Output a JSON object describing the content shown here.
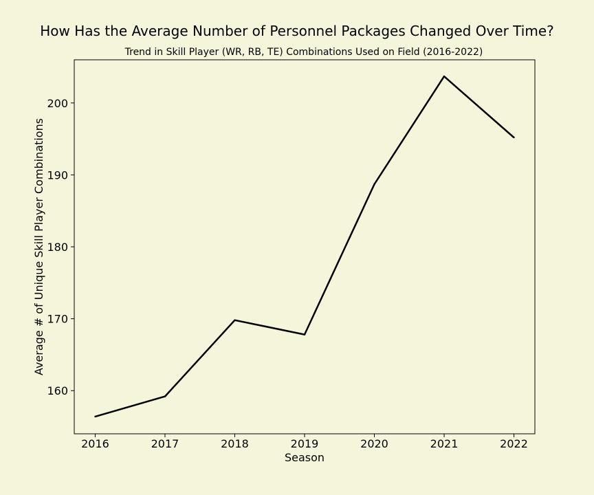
{
  "chart_data": {
    "type": "line",
    "title": "How Has the Average Number of Personnel Packages Changed Over Time?",
    "subtitle": "Trend in Skill Player (WR, RB, TE) Combinations Used on Field (2016-2022)",
    "xlabel": "Season",
    "ylabel": "Average # of Unique Skill Player Combinations",
    "x": [
      2016,
      2017,
      2018,
      2019,
      2020,
      2021,
      2022
    ],
    "y": [
      156.4,
      159.2,
      169.8,
      167.8,
      188.7,
      203.7,
      195.2
    ],
    "xlim": [
      2015.7,
      2022.3
    ],
    "ylim": [
      154.0,
      206.0
    ],
    "xticks": [
      "2016",
      "2017",
      "2018",
      "2019",
      "2020",
      "2021",
      "2022"
    ],
    "yticks": [
      160,
      170,
      180,
      190,
      200
    ],
    "ytick_labels": [
      "160",
      "170",
      "180",
      "190",
      "200"
    ],
    "grid": false,
    "line_color": "#000000",
    "background_color": "#f5f5dc"
  }
}
